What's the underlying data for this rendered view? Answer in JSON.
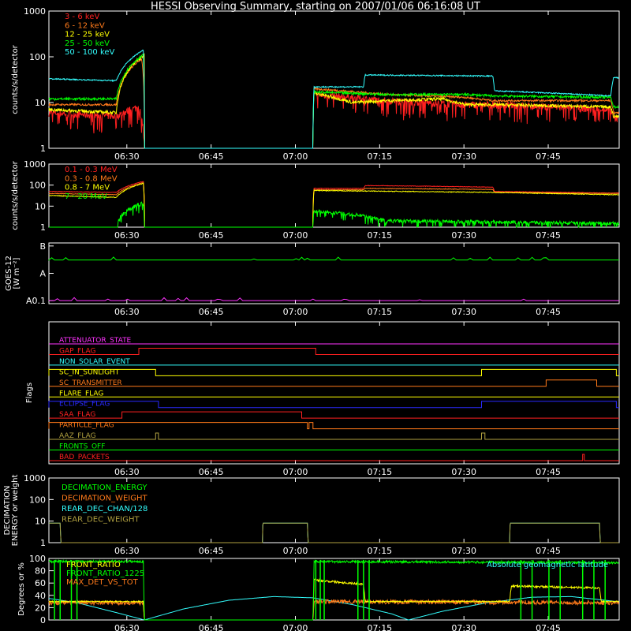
{
  "title": "HESSI Observing Summary, starting on 2007/01/06 06:16:08 UT",
  "time_ticks": [
    "06:30",
    "06:45",
    "07:00",
    "07:15",
    "07:30",
    "07:45"
  ],
  "colors": {
    "red": "#ff2020",
    "orange": "#ff7a1a",
    "yellow": "#ffff00",
    "green": "#00ff00",
    "cyan": "#33ffff",
    "magenta": "#ff33ff",
    "blue": "#2a2aff",
    "olive": "#b0a040"
  },
  "chart_data": [
    {
      "type": "line",
      "id": "lightcurves-low",
      "ylabel": "counts/s/detector",
      "ylim": [
        1,
        1000
      ],
      "yscale": "log",
      "yticks": [
        "1",
        "10",
        "100",
        "1000"
      ],
      "legend": [
        {
          "label": "3 - 6 keV",
          "color": "red"
        },
        {
          "label": "6 - 12 keV",
          "color": "orange"
        },
        {
          "label": "12 - 25 keV",
          "color": "yellow"
        },
        {
          "label": "25 - 50 keV",
          "color": "green"
        },
        {
          "label": "50 - 100 keV",
          "color": "cyan"
        }
      ],
      "series": [
        {
          "name": "3 - 6 keV",
          "color": "red",
          "points": [
            [
              0,
              6
            ],
            [
              12,
              5
            ],
            [
              16,
              8
            ],
            [
              17,
              1
            ],
            [
              47,
              1
            ],
            [
              47.2,
              15
            ],
            [
              60,
              11
            ],
            [
              74,
              9
            ],
            [
              79,
              9
            ],
            [
              100,
              7
            ],
            [
              100.5,
              4.5
            ]
          ],
          "noise": 0.18,
          "spikes": true
        },
        {
          "name": "6 - 12 keV",
          "color": "orange",
          "points": [
            [
              0,
              9
            ],
            [
              12,
              9
            ],
            [
              16.5,
              90
            ],
            [
              17,
              1
            ],
            [
              47,
              1
            ],
            [
              47.2,
              20
            ],
            [
              60,
              15
            ],
            [
              74,
              13
            ],
            [
              79,
              11
            ],
            [
              100,
              11
            ],
            [
              100.5,
              6
            ]
          ],
          "noise": 0.05
        },
        {
          "name": "12 - 25 keV",
          "color": "yellow",
          "points": [
            [
              0,
              7
            ],
            [
              12,
              6
            ],
            [
              17,
              110
            ],
            [
              17,
              1
            ],
            [
              47,
              1
            ],
            [
              47.2,
              16
            ],
            [
              54,
              10
            ],
            [
              60,
              11
            ],
            [
              70,
              12
            ],
            [
              74,
              9
            ],
            [
              79,
              9
            ],
            [
              100,
              8
            ],
            [
              100.5,
              5
            ]
          ],
          "noise": 0.08
        },
        {
          "name": "25 - 50 keV",
          "color": "green",
          "points": [
            [
              0,
              12
            ],
            [
              12,
              12
            ],
            [
              16.8,
              110
            ],
            [
              17,
              1
            ],
            [
              47,
              1
            ],
            [
              47.2,
              17
            ],
            [
              60,
              15
            ],
            [
              74,
              15
            ],
            [
              79,
              14
            ],
            [
              100,
              13
            ],
            [
              100.5,
              8
            ]
          ],
          "noise": 0.06
        },
        {
          "name": "50 - 100 keV",
          "color": "cyan",
          "points": [
            [
              0,
              33
            ],
            [
              12,
              30
            ],
            [
              16.8,
              140
            ],
            [
              17,
              1
            ],
            [
              47,
              1
            ],
            [
              47.2,
              22
            ],
            [
              56,
              22
            ],
            [
              56.3,
              40
            ],
            [
              79,
              38
            ],
            [
              79.3,
              18
            ],
            [
              100,
              14
            ],
            [
              100.5,
              35
            ]
          ],
          "noise": 0.03
        }
      ]
    },
    {
      "type": "line",
      "id": "lightcurves-high",
      "ylabel": "counts/s/detector",
      "ylim": [
        1,
        1000
      ],
      "yscale": "log",
      "yticks": [
        "1",
        "10",
        "100",
        "1000"
      ],
      "legend": [
        {
          "label": "0.1 - 0.3 MeV",
          "color": "red"
        },
        {
          "label": "0.3 - 0.8 MeV",
          "color": "orange"
        },
        {
          "label": "0.8 - 7 MeV",
          "color": "yellow"
        },
        {
          "label": "7 - 20 MeV",
          "color": "green"
        }
      ],
      "series": [
        {
          "name": "0.1 - 0.3 MeV",
          "color": "red",
          "points": [
            [
              0,
              50
            ],
            [
              12,
              45
            ],
            [
              16.8,
              150
            ],
            [
              17,
              1
            ],
            [
              47,
              1
            ],
            [
              47.2,
              70
            ],
            [
              56,
              70
            ],
            [
              56.3,
              95
            ],
            [
              65,
              90
            ],
            [
              79,
              80
            ],
            [
              79.3,
              50
            ],
            [
              100,
              42
            ]
          ],
          "noise": 0.03
        },
        {
          "name": "0.3 - 0.8 MeV",
          "color": "orange",
          "points": [
            [
              0,
              40
            ],
            [
              12,
              35
            ],
            [
              16.8,
              130
            ],
            [
              17,
              1
            ],
            [
              47,
              1
            ],
            [
              47.2,
              60
            ],
            [
              56,
              60
            ],
            [
              56.3,
              70
            ],
            [
              79,
              62
            ],
            [
              79.3,
              45
            ],
            [
              100,
              40
            ]
          ],
          "noise": 0.03
        },
        {
          "name": "0.8 - 7 MeV",
          "color": "yellow",
          "points": [
            [
              0,
              32
            ],
            [
              12,
              26
            ],
            [
              16.8,
              120
            ],
            [
              17,
              1
            ],
            [
              47,
              1
            ],
            [
              47.2,
              55
            ],
            [
              79,
              45
            ],
            [
              100,
              35
            ]
          ],
          "noise": 0.04
        },
        {
          "name": "7 - 20 MeV",
          "color": "green",
          "points": [
            [
              0,
              1
            ],
            [
              12,
              1
            ],
            [
              16.8,
              14
            ],
            [
              17,
              1
            ],
            [
              47,
              1
            ],
            [
              47.2,
              6
            ],
            [
              54,
              4
            ],
            [
              60,
              2
            ],
            [
              100,
              1.5
            ]
          ],
          "noise": 0.2,
          "spikes": true
        }
      ]
    },
    {
      "type": "line",
      "id": "goes",
      "ylabel": "GOES-12",
      "ylabel2": "[W m⁻²]",
      "yticks": [
        "A0.1",
        "A",
        "B"
      ],
      "series": [
        {
          "name": "GOES high",
          "color": "green",
          "level": 0.72
        },
        {
          "name": "GOES low",
          "color": "magenta",
          "level": 0.05
        }
      ]
    },
    {
      "type": "line",
      "id": "flags",
      "ylabel": "Flags",
      "rows": [
        {
          "label": "ATTENUATOR_STATE",
          "color": "magenta",
          "high": []
        },
        {
          "label": "GAP_FLAG",
          "color": "red",
          "high": [
            [
              16,
              47.5
            ]
          ]
        },
        {
          "label": "NON_SOLAR_EVENT",
          "color": "cyan",
          "high": []
        },
        {
          "label": "SC_IN_SUNLIGHT",
          "color": "yellow",
          "high": [
            [
              0,
              19
            ],
            [
              77,
              101
            ]
          ]
        },
        {
          "label": "SC_TRANSMITTER",
          "color": "orange",
          "high": [
            [
              88.5,
              97.5
            ]
          ]
        },
        {
          "label": "FLARE_FLAG",
          "color": "yellow",
          "high": []
        },
        {
          "label": "ECLIPSE_FLAG",
          "color": "blue",
          "high": [
            [
              0,
              19.5
            ],
            [
              77,
              101
            ]
          ]
        },
        {
          "label": "SAA_FLAG",
          "color": "red",
          "high": [
            [
              13,
              45
            ]
          ]
        },
        {
          "label": "PARTICLE_FLAG",
          "color": "orange",
          "high": [
            [
              0,
              46
            ],
            [
              46.3,
              47
            ]
          ]
        },
        {
          "label": "AAZ_FLAG",
          "color": "olive",
          "high": [
            [
              19,
              19.5
            ],
            [
              77,
              77.6
            ]
          ]
        },
        {
          "label": "FRONTS_OFF",
          "color": "green",
          "high": []
        },
        {
          "label": "BAD_PACKETS",
          "color": "red",
          "high": [
            [
              95,
              95.3
            ]
          ]
        }
      ]
    },
    {
      "type": "line",
      "id": "decimation",
      "ylabel": "DECIMATION",
      "ylabel2": "ENERGY or weight",
      "ylim": [
        1,
        1000
      ],
      "yscale": "log",
      "yticks": [
        "1",
        "10",
        "100",
        "1000"
      ],
      "legend": [
        {
          "label": "DECIMATION_ENERGY",
          "color": "green"
        },
        {
          "label": "DECIMATION_WEIGHT",
          "color": "orange"
        },
        {
          "label": "REAR_DEC_CHAN/128",
          "color": "cyan"
        },
        {
          "label": "REAR_DEC_WEIGHT",
          "color": "olive"
        }
      ],
      "series": [
        {
          "name": "REAR_DEC_CHAN/128",
          "color": "cyan",
          "points": [
            [
              0,
              8
            ],
            [
              2,
              8
            ],
            [
              2.1,
              1
            ],
            [
              38,
              1
            ],
            [
              38.1,
              8
            ],
            [
              46,
              8
            ],
            [
              46.1,
              1
            ],
            [
              82,
              1
            ],
            [
              82.1,
              8
            ],
            [
              98,
              8
            ],
            [
              98.1,
              1
            ],
            [
              101,
              1
            ]
          ],
          "noise": 0
        },
        {
          "name": "REAR_DEC_WEIGHT",
          "color": "olive",
          "points": [
            [
              0,
              8
            ],
            [
              2,
              8
            ],
            [
              2.1,
              1
            ],
            [
              38,
              1
            ],
            [
              38.1,
              8
            ],
            [
              46,
              8
            ],
            [
              46.1,
              1
            ],
            [
              82,
              1
            ],
            [
              82.1,
              8
            ],
            [
              98,
              8
            ],
            [
              98.1,
              1
            ],
            [
              101,
              1
            ]
          ],
          "noise": 0
        }
      ]
    },
    {
      "type": "line",
      "id": "ratios",
      "ylabel": "Degrees or %",
      "ylim": [
        0,
        100
      ],
      "yticks": [
        "0",
        "20",
        "40",
        "60",
        "80",
        "100"
      ],
      "legend": [
        {
          "label": "FRONT_RATIO",
          "color": "yellow"
        },
        {
          "label": "FRONT_RATIO_1225",
          "color": "green"
        },
        {
          "label": "MAX_DET_VS_TOT",
          "color": "orange"
        }
      ],
      "legend_right": {
        "label": "Absolute geomagnetic latitude",
        "color": "cyan"
      },
      "series": [
        {
          "name": "Absolute geomagnetic latitude",
          "color": "cyan",
          "points": [
            [
              0,
              35
            ],
            [
              5,
              28
            ],
            [
              12,
              12
            ],
            [
              17,
              0
            ],
            [
              24,
              18
            ],
            [
              32,
              32
            ],
            [
              40,
              38
            ],
            [
              47,
              36
            ],
            [
              54,
              25
            ],
            [
              61,
              10
            ],
            [
              64,
              0
            ],
            [
              70,
              14
            ],
            [
              78,
              28
            ],
            [
              86,
              37
            ],
            [
              93,
              38
            ],
            [
              101,
              30
            ]
          ],
          "noise": 0
        },
        {
          "name": "MAX_DET_VS_TOT",
          "color": "orange",
          "points": [
            [
              0,
              28
            ],
            [
              16.8,
              28
            ],
            [
              17,
              0
            ],
            [
              47,
              0
            ],
            [
              47.2,
              30
            ],
            [
              101,
              28
            ]
          ],
          "noise": 0.12
        },
        {
          "name": "FRONT_RATIO",
          "color": "yellow",
          "points": [
            [
              0,
              30
            ],
            [
              16.8,
              30
            ],
            [
              17,
              0
            ],
            [
              47,
              0
            ],
            [
              47.2,
              65
            ],
            [
              56,
              58
            ],
            [
              56.3,
              30
            ],
            [
              82,
              30
            ],
            [
              82.3,
              55
            ],
            [
              98,
              52
            ],
            [
              98.3,
              30
            ],
            [
              101,
              30
            ]
          ],
          "noise": 0.03
        },
        {
          "name": "FRONT_RATIO_1225",
          "color": "green",
          "points": [
            [
              0,
              95
            ],
            [
              16.8,
              95
            ],
            [
              17,
              0
            ],
            [
              47,
              0
            ],
            [
              47.2,
              95
            ],
            [
              101,
              93
            ]
          ],
          "noise": 0.02
        }
      ]
    }
  ]
}
